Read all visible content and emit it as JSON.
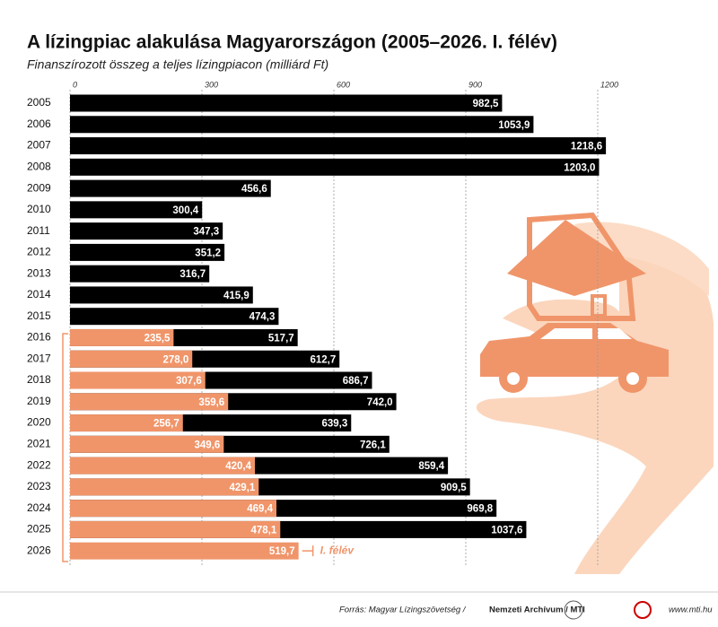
{
  "chart_data": {
    "type": "bar",
    "orientation": "horizontal",
    "title": "A lízingpiac alakulása Magyarországon (2005–2026. I. félév)",
    "subtitle": "Finanszírozott összeg a teljes lízingpiacon (milliárd Ft)",
    "categories": [
      "2005",
      "2006",
      "2007",
      "2008",
      "2009",
      "2010",
      "2011",
      "2012",
      "2013",
      "2014",
      "2015",
      "2016",
      "2017",
      "2018",
      "2019",
      "2020",
      "2021",
      "2022",
      "2023",
      "2024",
      "2025",
      "2026"
    ],
    "series": [
      {
        "color": "#000000",
        "values": [
          982.5,
          1053.9,
          1218.6,
          1203.0,
          456.6,
          300.4,
          347.3,
          351.2,
          316.7,
          415.9,
          474.3,
          517.7,
          612.7,
          686.7,
          742.0,
          639.3,
          726.1,
          859.4,
          909.5,
          969.8,
          1037.6,
          null
        ],
        "value_labels": [
          "982,5",
          "1053,9",
          "1218,6",
          "1203,0",
          "456,6",
          "300,4",
          "347,3",
          "351,2",
          "316,7",
          "415,9",
          "474,3",
          "517,7",
          "612,7",
          "686,7",
          "742,0",
          "639,3",
          "726,1",
          "859,4",
          "909,5",
          "969,8",
          "1037,6",
          null
        ]
      },
      {
        "color": "#f0956a",
        "values": [
          null,
          null,
          null,
          null,
          null,
          null,
          null,
          null,
          null,
          null,
          null,
          235.5,
          278.0,
          307.6,
          359.6,
          256.7,
          349.6,
          420.4,
          429.1,
          469.4,
          478.1,
          519.7
        ],
        "value_labels": [
          null,
          null,
          null,
          null,
          null,
          null,
          null,
          null,
          null,
          null,
          null,
          "235,5",
          "278,0",
          "307,6",
          "359,6",
          "256,7",
          "349,6",
          "420,4",
          "429,1",
          "469,4",
          "478,1",
          "519,7"
        ]
      }
    ],
    "xlim": [
      0,
      1200
    ],
    "xticks": [
      0,
      300,
      600,
      900,
      1200
    ],
    "grid": true,
    "annotation": "I. félév"
  },
  "footer": {
    "source": "Forrás: Magyar Lízingszövetség /",
    "source_bold": "Nemzeti Archívum / MTI",
    "url": "www.mti.hu"
  }
}
